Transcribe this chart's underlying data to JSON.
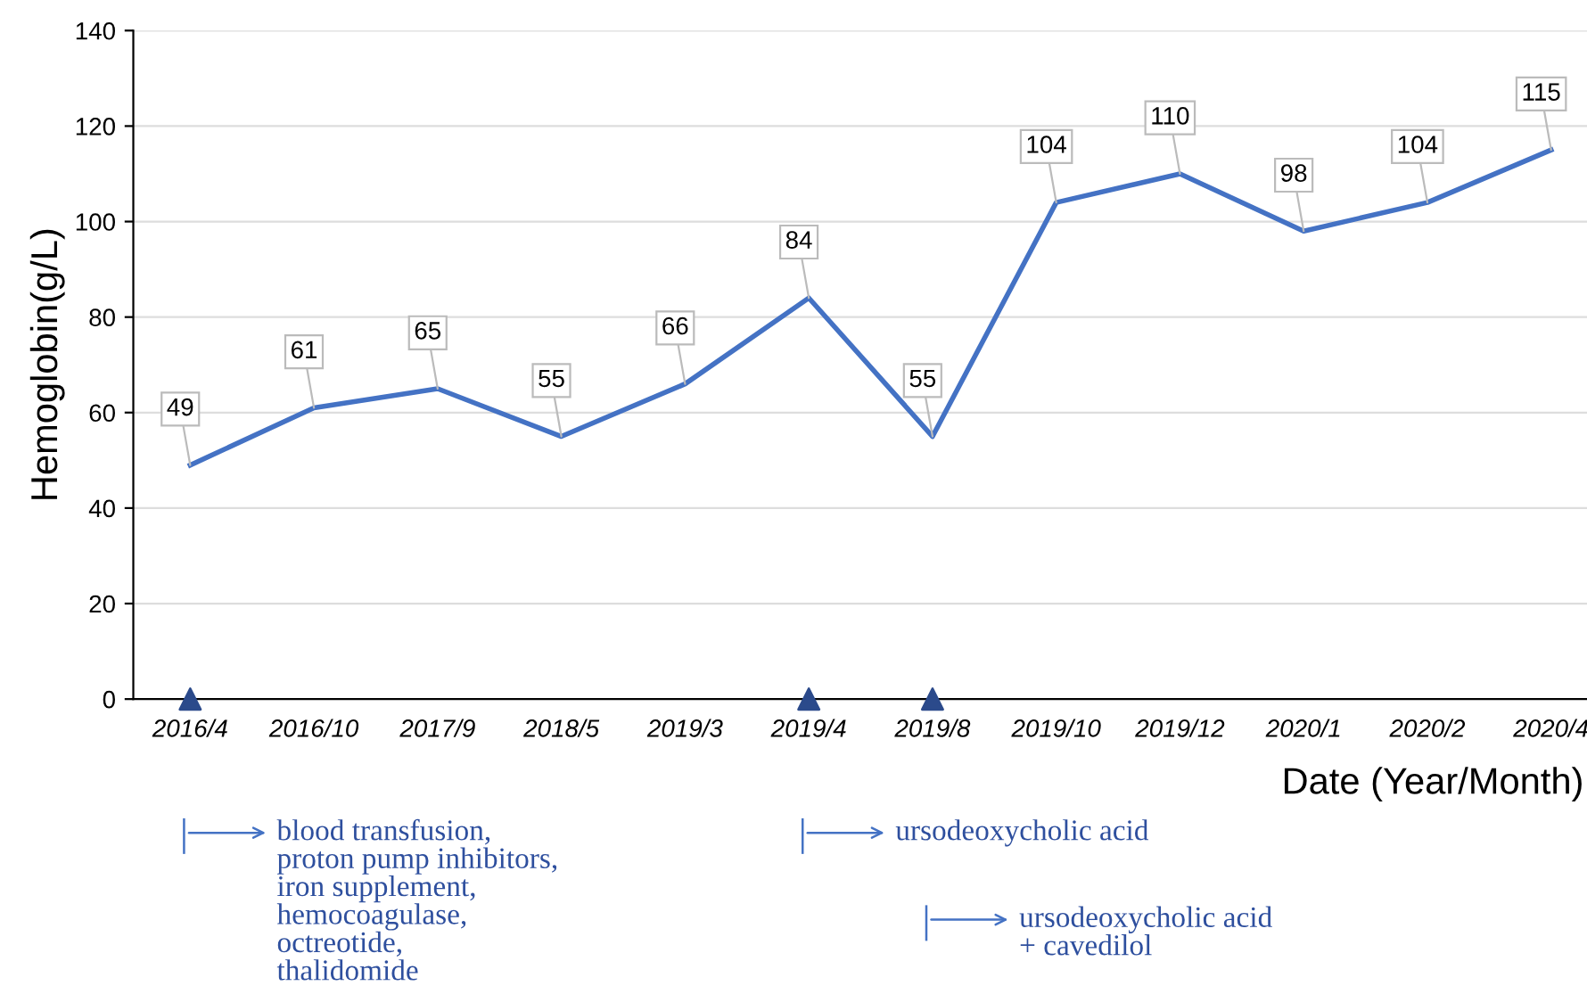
{
  "chart_data": {
    "type": "line",
    "categories": [
      "2016/4",
      "2016/10",
      "2017/9",
      "2018/5",
      "2019/3",
      "2019/4",
      "2019/8",
      "2019/10",
      "2019/12",
      "2020/1",
      "2020/2",
      "2020/4"
    ],
    "series": [
      {
        "color": "#4472c4",
        "values": [
          49,
          61,
          65,
          55,
          66,
          84,
          55,
          104,
          110,
          98,
          104,
          115
        ],
        "data_labels": true,
        "marker": "none"
      },
      {
        "type": "scatter",
        "color": "#2b4a8b",
        "x": [
          "2016/4",
          "2019/4",
          "2019/8"
        ],
        "values": [
          0,
          0,
          0
        ],
        "marker": "triangle"
      }
    ],
    "ylabel": "Hemoglobin(g/L)",
    "xlabel": "Date (Year/Month)",
    "ylim": [
      0,
      140
    ],
    "yticks": [
      0,
      20,
      40,
      60,
      80,
      100,
      120,
      140
    ],
    "grid": "y",
    "legend": false,
    "annotations": [
      "blood transfusion,\nproton pump inhibitors,\niron supplement,\nhemocoagulase,\noctreotide,\nthalidomide",
      "ursodeoxycholic acid",
      "ursodeoxycholic acid\n+ cavedilol"
    ]
  }
}
